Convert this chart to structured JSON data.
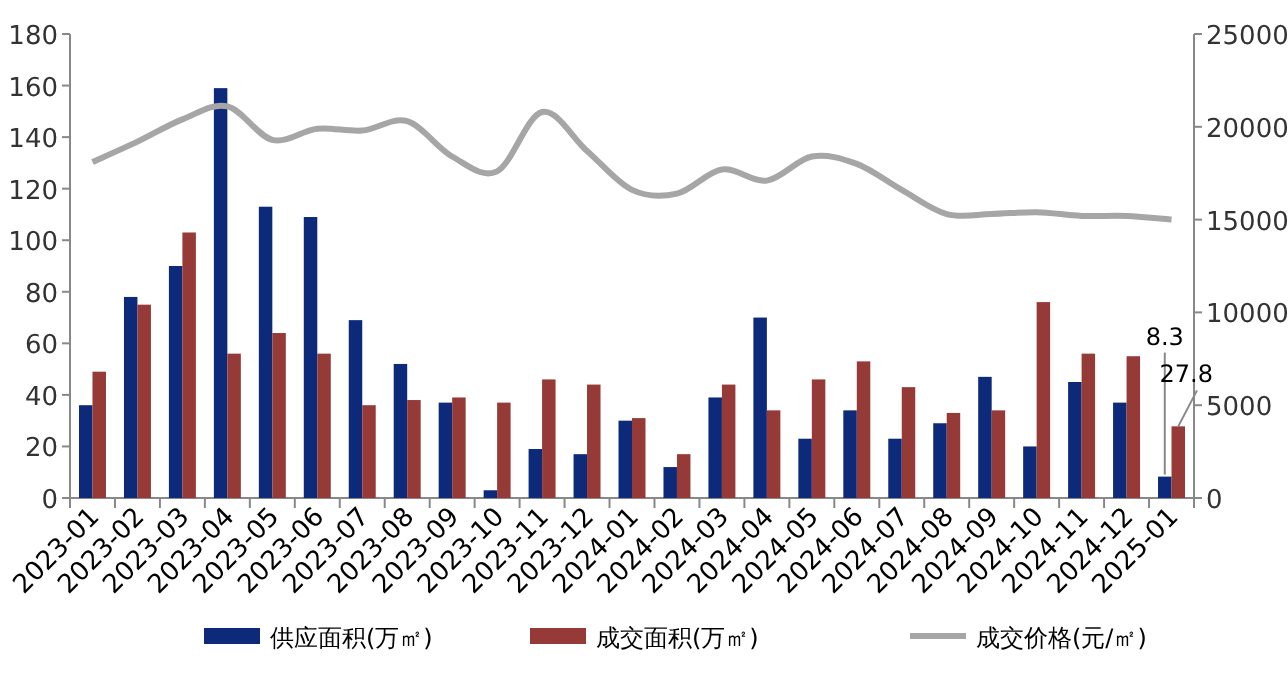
{
  "chart_data": {
    "type": "bar",
    "categories": [
      "2023-01",
      "2023-02",
      "2023-03",
      "2023-04",
      "2023-05",
      "2023-06",
      "2023-07",
      "2023-08",
      "2023-09",
      "2023-10",
      "2023-11",
      "2023-12",
      "2024-01",
      "2024-02",
      "2024-03",
      "2024-04",
      "2024-05",
      "2024-06",
      "2024-07",
      "2024-08",
      "2024-09",
      "2024-10",
      "2024-11",
      "2024-12",
      "2025-01"
    ],
    "series": [
      {
        "name": "供应面积(万㎡)",
        "type": "bar",
        "color": "#0d2a7a",
        "values": [
          36,
          78,
          90,
          159,
          113,
          109,
          69,
          52,
          37,
          3,
          19,
          17,
          30,
          12,
          39,
          70,
          23,
          34,
          23,
          29,
          47,
          20,
          45,
          37,
          8.3
        ],
        "value_labels": [
          null,
          null,
          null,
          null,
          null,
          null,
          null,
          null,
          null,
          null,
          null,
          null,
          null,
          null,
          null,
          null,
          null,
          null,
          null,
          null,
          null,
          null,
          null,
          null,
          "8.3"
        ]
      },
      {
        "name": "成交面积(万㎡)",
        "color": "#963a38",
        "values": [
          49,
          75,
          103,
          56,
          64,
          56,
          36,
          38,
          39,
          37,
          46,
          44,
          31,
          17,
          44,
          34,
          46,
          53,
          43,
          33,
          34,
          76,
          56,
          55,
          27.8
        ],
        "value_labels": [
          null,
          null,
          null,
          null,
          null,
          null,
          null,
          null,
          null,
          null,
          null,
          null,
          null,
          null,
          null,
          null,
          null,
          null,
          null,
          null,
          null,
          null,
          null,
          null,
          "27.8"
        ]
      },
      {
        "name": "成交价格(元/㎡)",
        "type": "line",
        "axis": "y2",
        "color": "#a6a6a6",
        "values": [
          18100,
          19200,
          20400,
          21100,
          19300,
          19900,
          19800,
          20300,
          18400,
          17600,
          20800,
          18700,
          16600,
          16400,
          17700,
          17100,
          18400,
          18000,
          16600,
          15300,
          15300,
          15400,
          15200,
          15200,
          15000
        ]
      }
    ],
    "ylim": [
      0,
      180
    ],
    "yticks": [
      0,
      20,
      40,
      60,
      80,
      100,
      120,
      140,
      160,
      180
    ],
    "y2lim": [
      0,
      25000
    ],
    "y2ticks": [
      0,
      5000,
      10000,
      15000,
      20000,
      25000
    ],
    "legend": "bottom",
    "grid": false,
    "marker": "none",
    "line_style": "solid"
  }
}
